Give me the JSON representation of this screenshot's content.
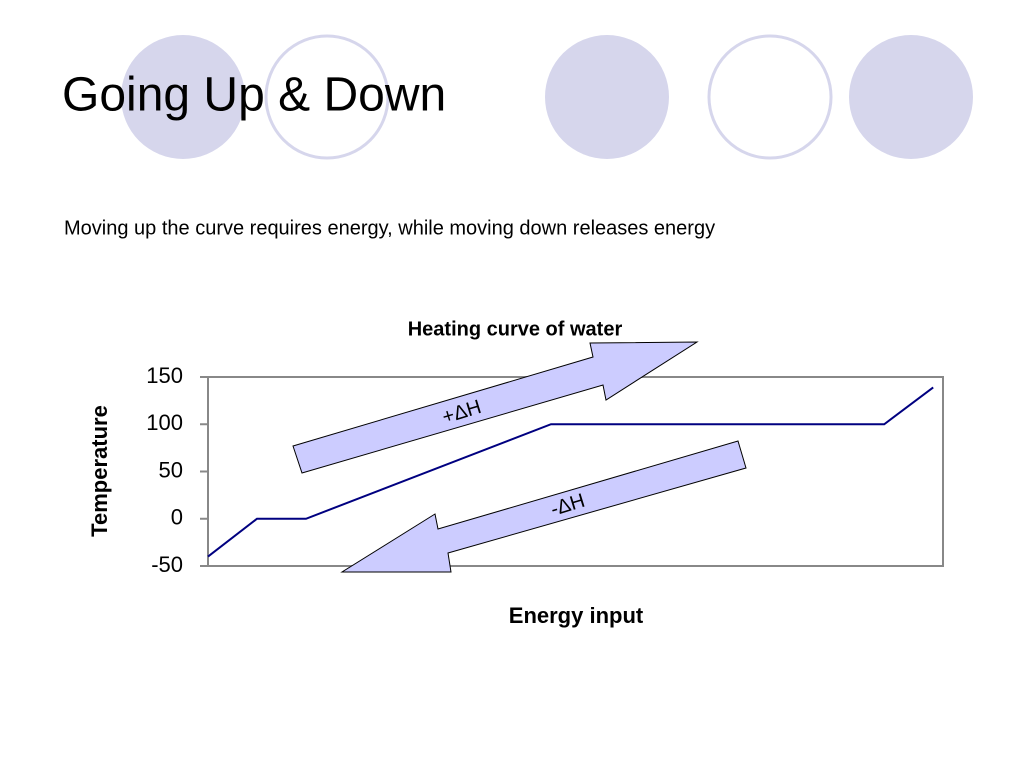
{
  "slide": {
    "title": "Going Up & Down",
    "subtitle": "Moving up the curve requires energy, while moving down releases energy"
  },
  "chart_data": {
    "type": "line",
    "title": "Heating curve of water",
    "x_label": "Energy input",
    "y_label": "Temperature",
    "x": [
      0,
      1,
      2,
      7,
      13.8,
      14.8
    ],
    "series": [
      {
        "name": "Temperature",
        "color": "#000080",
        "values": [
          -40,
          0,
          0,
          100,
          100,
          139
        ]
      }
    ],
    "xlim": [
      0,
      15
    ],
    "ylim": [
      -50,
      150
    ],
    "yticks": [
      -50,
      0,
      50,
      100,
      150
    ],
    "grid": false,
    "annotations": [
      "+ΔH",
      "-ΔH"
    ]
  }
}
